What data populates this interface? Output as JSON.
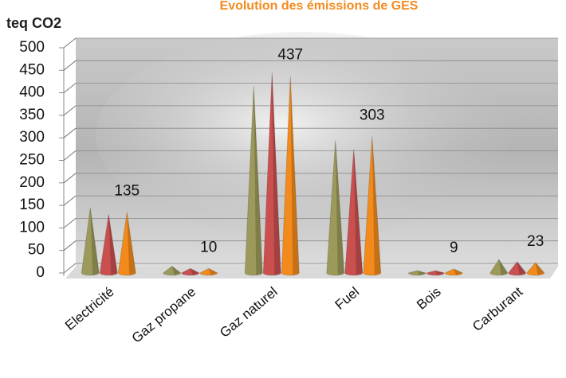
{
  "chart_data": {
    "type": "cone",
    "title": "Evolution des émissions de GES",
    "y_label": "teq CO2",
    "categories": [
      "Electricité",
      "Gaz propane",
      "Gaz naturel",
      "Fuel",
      "Bois",
      "Carburant"
    ],
    "series": [
      {
        "color": "#9c9a5a",
        "values": [
          145,
          15,
          415,
          295,
          5,
          30
        ]
      },
      {
        "color": "#c9504f",
        "values": [
          130,
          10,
          445,
          275,
          5,
          25
        ]
      },
      {
        "color": "#f28a1c",
        "values": [
          135,
          10,
          437,
          303,
          9,
          23
        ]
      }
    ],
    "ylim": [
      0,
      500
    ],
    "yticks": [
      0,
      50,
      100,
      150,
      200,
      250,
      300,
      350,
      400,
      450,
      500
    ],
    "grid": true
  }
}
